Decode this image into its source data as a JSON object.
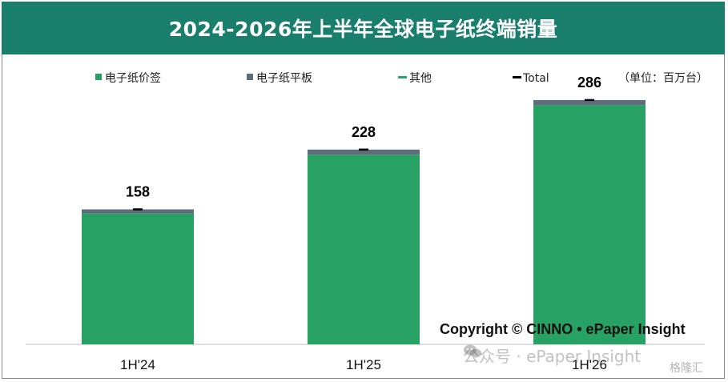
{
  "title": "2024-2026年上半年全球电子纸终端销量",
  "unit_label": "（单位：百万台）",
  "colors": {
    "title_bg": "#1a7e6d",
    "label_series": "#27a264",
    "tablet_series": "#5d6e7a",
    "other_series": "#1fa86a",
    "total_marker": "#000000"
  },
  "legend": [
    {
      "label": "电子纸价签",
      "key": "label"
    },
    {
      "label": "电子纸平板",
      "key": "tablet"
    },
    {
      "label": "其他",
      "key": "other"
    },
    {
      "label": "Total",
      "key": "total"
    }
  ],
  "copyright": "Copyright © CINNO • ePaper Insight",
  "watermark": "公众号 · ePaper Insight",
  "corner_logo": "格隆汇",
  "chart_data": {
    "type": "bar",
    "stacked": true,
    "categories": [
      "1H'24",
      "1H'25",
      "1H'26"
    ],
    "series": [
      {
        "name": "电子纸价签",
        "values": [
          153,
          222,
          280
        ]
      },
      {
        "name": "电子纸平板",
        "values": [
          5,
          6,
          6
        ]
      },
      {
        "name": "其他",
        "values": [
          0,
          0,
          0
        ]
      }
    ],
    "totals": [
      158,
      228,
      286
    ],
    "ylim": [
      0,
      300
    ],
    "grid": false,
    "legend_position": "top"
  }
}
